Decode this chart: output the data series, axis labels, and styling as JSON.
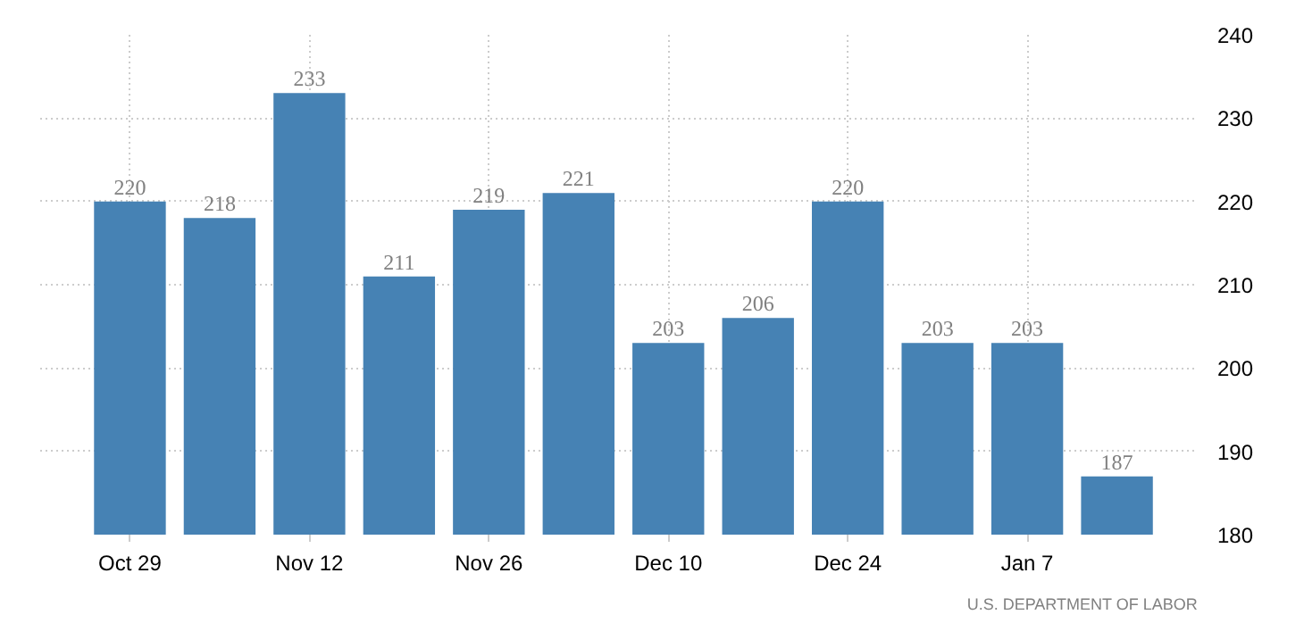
{
  "chart_data": {
    "type": "bar",
    "categories": [
      "Oct 29",
      null,
      "Nov 12",
      null,
      "Nov 26",
      null,
      "Dec 10",
      null,
      "Dec 24",
      null,
      "Jan 7",
      null
    ],
    "values": [
      220,
      218,
      233,
      211,
      219,
      221,
      203,
      206,
      220,
      203,
      203,
      187
    ],
    "color": "#4682b4",
    "ylim": [
      180,
      240
    ],
    "yticks": [
      180,
      190,
      200,
      210,
      220,
      230,
      240
    ],
    "grid": true,
    "data_labels": true,
    "annotations": [
      "U.S. DEPARTMENT OF LABOR"
    ]
  }
}
